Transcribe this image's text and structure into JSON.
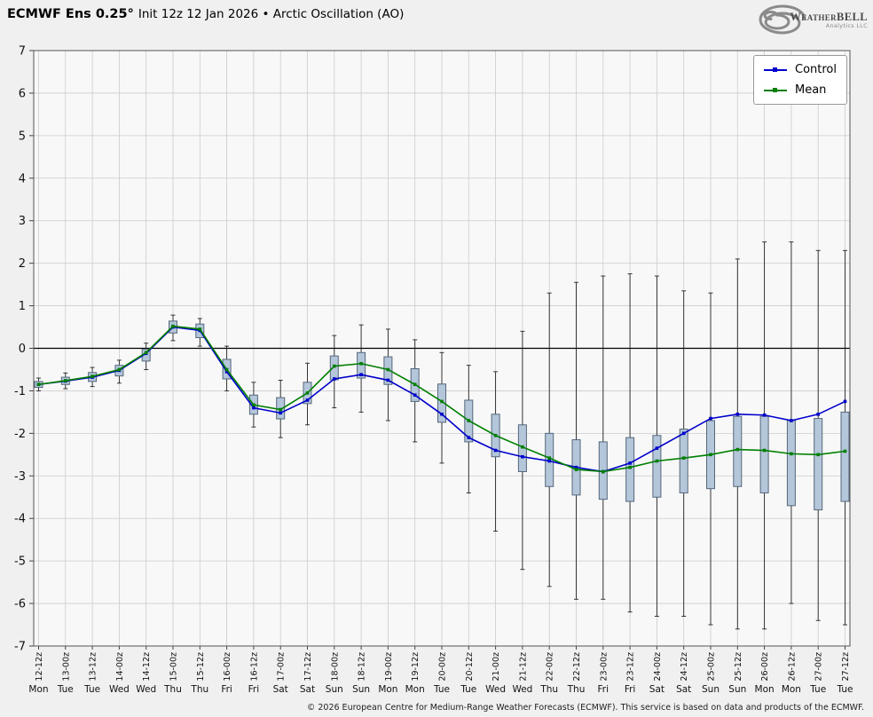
{
  "header": {
    "title_bold": "ECMWF Ens 0.25°",
    "title_rest": "Init 12z 12 Jan 2026 • Arctic Oscillation (AO)",
    "logo_text": "WeatherBELL",
    "logo_subtext": "Analytics LLC"
  },
  "legend": {
    "control": "Control",
    "mean": "Mean"
  },
  "footer": {
    "copyright": "© 2026 European Centre for Medium-Range Weather Forecasts (ECMWF). This service is based on data and products of the ECMWF."
  },
  "chart_data": {
    "type": "line+boxplot",
    "title": "ECMWF Ens 0.25° Init 12z 12 Jan 2026 • Arctic Oscillation (AO)",
    "ylabel": "",
    "ylim": [
      -7,
      7
    ],
    "ytick_step": 1,
    "grid": true,
    "legend_position": "top-right",
    "x_labels": [
      "12-12z",
      "13-00z",
      "13-12z",
      "14-00z",
      "14-12z",
      "15-00z",
      "15-12z",
      "16-00z",
      "16-12z",
      "17-00z",
      "17-12z",
      "18-00z",
      "18-12z",
      "19-00z",
      "19-12z",
      "20-00z",
      "20-12z",
      "21-00z",
      "21-12z",
      "22-00z",
      "22-12z",
      "23-00z",
      "23-12z",
      "24-00z",
      "24-12z",
      "25-00z",
      "25-12z",
      "26-00z",
      "26-12z",
      "27-00z",
      "27-12z"
    ],
    "day_labels": [
      "Mon",
      "Tue",
      "Tue",
      "Wed",
      "Wed",
      "Thu",
      "Thu",
      "Fri",
      "Fri",
      "Sat",
      "Sat",
      "Sun",
      "Sun",
      "Mon",
      "Mon",
      "Tue",
      "Tue",
      "Wed",
      "Wed",
      "Thu",
      "Thu",
      "Fri",
      "Fri",
      "Sat",
      "Sat",
      "Sun",
      "Sun",
      "Mon",
      "Mon",
      "Tue",
      "Tue"
    ],
    "series": [
      {
        "name": "Control",
        "type": "line",
        "color": "#0000cc",
        "values": [
          -0.85,
          -0.77,
          -0.68,
          -0.52,
          -0.12,
          0.5,
          0.42,
          -0.55,
          -1.4,
          -1.52,
          -1.22,
          -0.72,
          -0.62,
          -0.75,
          -1.1,
          -1.55,
          -2.1,
          -2.4,
          -2.55,
          -2.65,
          -2.8,
          -2.9,
          -2.7,
          -2.35,
          -2.0,
          -1.65,
          -1.55,
          -1.57,
          -1.7,
          -1.55,
          -1.25
        ]
      },
      {
        "name": "Mean",
        "type": "line",
        "color": "#007f00",
        "values": [
          -0.85,
          -0.76,
          -0.66,
          -0.5,
          -0.1,
          0.52,
          0.45,
          -0.5,
          -1.33,
          -1.44,
          -1.05,
          -0.42,
          -0.36,
          -0.5,
          -0.85,
          -1.25,
          -1.7,
          -2.05,
          -2.32,
          -2.58,
          -2.85,
          -2.9,
          -2.8,
          -2.65,
          -2.58,
          -2.5,
          -2.38,
          -2.4,
          -2.48,
          -2.5,
          -2.42
        ]
      }
    ],
    "boxplot": {
      "fill": "#b4c6da",
      "stroke": "#55677a",
      "whisker_color": "#222222",
      "box_low": [
        -0.92,
        -0.85,
        -0.78,
        -0.65,
        -0.3,
        0.36,
        0.25,
        -0.72,
        -1.55,
        -1.66,
        -1.3,
        -0.74,
        -0.7,
        -0.85,
        -1.25,
        -1.74,
        -2.2,
        -2.55,
        -2.9,
        -3.25,
        -3.45,
        -3.55,
        -3.6,
        -3.5,
        -3.4,
        -3.3,
        -3.25,
        -3.4,
        -3.7,
        -3.8,
        -3.6
      ],
      "box_high": [
        -0.78,
        -0.68,
        -0.57,
        -0.4,
        -0.02,
        0.64,
        0.57,
        -0.26,
        -1.1,
        -1.16,
        -0.8,
        -0.18,
        -0.1,
        -0.2,
        -0.48,
        -0.84,
        -1.22,
        -1.55,
        -1.8,
        -2.0,
        -2.15,
        -2.2,
        -2.1,
        -2.05,
        -1.9,
        -1.7,
        -1.6,
        -1.6,
        -1.7,
        -1.65,
        -1.5
      ],
      "whisker_low": [
        -1.0,
        -0.95,
        -0.9,
        -0.82,
        -0.5,
        0.18,
        0.05,
        -1.0,
        -1.85,
        -2.1,
        -1.8,
        -1.4,
        -1.5,
        -1.7,
        -2.2,
        -2.7,
        -3.4,
        -4.3,
        -5.2,
        -5.6,
        -5.9,
        -5.9,
        -6.2,
        -6.3,
        -6.3,
        -6.5,
        -6.6,
        -6.6,
        -6.0,
        -6.4,
        -6.5
      ],
      "whisker_high": [
        -0.7,
        -0.58,
        -0.45,
        -0.28,
        0.12,
        0.78,
        0.7,
        0.05,
        -0.8,
        -0.75,
        -0.35,
        0.3,
        0.55,
        0.45,
        0.2,
        -0.1,
        -0.4,
        -0.55,
        0.4,
        1.3,
        1.55,
        1.7,
        1.75,
        1.7,
        1.35,
        1.3,
        2.1,
        2.5,
        2.5,
        2.3,
        2.3
      ]
    },
    "colors": {
      "page_bg": "#f0f0f0",
      "plot_bg": "#f8f8f8",
      "grid": "#cccccc",
      "zero_line": "#000000",
      "axis": "#444444"
    }
  }
}
